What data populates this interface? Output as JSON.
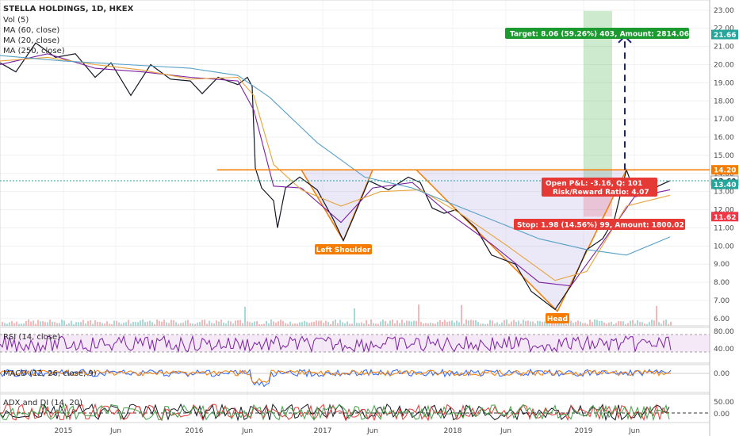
{
  "chart_data": {
    "type": "line",
    "title": "STELLA HOLDINGS, 1D, HKEX",
    "legend": [
      "Vol (5)",
      "MA (60, close)",
      "MA (20, close)",
      "MA (250, close)"
    ],
    "x_ticks": [
      "2015",
      "Jun",
      "2016",
      "Jun",
      "2017",
      "Jun",
      "2018",
      "Jun",
      "2019",
      "Jun"
    ],
    "price_ticks": [
      "23.00",
      "22.00",
      "21.00",
      "20.00",
      "19.00",
      "18.00",
      "17.00",
      "16.00",
      "15.00",
      "14.00",
      "13.00",
      "12.00",
      "11.00",
      "10.00",
      "9.00",
      "8.00",
      "7.00",
      "6.00"
    ],
    "price_range": [
      5.6,
      23.3
    ],
    "series": [
      {
        "name": "Price",
        "color": "#131722",
        "points": [
          [
            0,
            20.1
          ],
          [
            20,
            19.6
          ],
          [
            45,
            21.2
          ],
          [
            70,
            20.4
          ],
          [
            95,
            20.6
          ],
          [
            120,
            19.3
          ],
          [
            140,
            20.1
          ],
          [
            165,
            18.3
          ],
          [
            190,
            20.0
          ],
          [
            215,
            19.2
          ],
          [
            240,
            19.1
          ],
          [
            255,
            18.4
          ],
          [
            275,
            19.3
          ],
          [
            300,
            18.9
          ],
          [
            312,
            19.3
          ],
          [
            318,
            18.8
          ],
          [
            322,
            14.3
          ],
          [
            330,
            13.2
          ],
          [
            345,
            12.5
          ],
          [
            350,
            11.0
          ],
          [
            360,
            13.2
          ],
          [
            378,
            13.8
          ],
          [
            400,
            13.1
          ],
          [
            420,
            11.5
          ],
          [
            433,
            10.3
          ],
          [
            445,
            11.5
          ],
          [
            465,
            13.6
          ],
          [
            490,
            13.1
          ],
          [
            515,
            13.8
          ],
          [
            530,
            13.5
          ],
          [
            545,
            12.1
          ],
          [
            560,
            11.8
          ],
          [
            575,
            12.0
          ],
          [
            600,
            11.0
          ],
          [
            620,
            9.5
          ],
          [
            650,
            9.0
          ],
          [
            670,
            7.5
          ],
          [
            700,
            6.5
          ],
          [
            720,
            7.8
          ],
          [
            740,
            9.8
          ],
          [
            760,
            10.4
          ],
          [
            775,
            11.5
          ],
          [
            790,
            14.2
          ],
          [
            800,
            13.0
          ],
          [
            815,
            12.8
          ],
          [
            830,
            13.3
          ],
          [
            845,
            13.6
          ]
        ]
      },
      {
        "name": "MA (20)",
        "color": "#7b1fa2",
        "points": [
          [
            0,
            20.0
          ],
          [
            60,
            20.6
          ],
          [
            120,
            19.8
          ],
          [
            180,
            19.6
          ],
          [
            240,
            19.3
          ],
          [
            300,
            19.1
          ],
          [
            320,
            17.5
          ],
          [
            345,
            13.3
          ],
          [
            380,
            13.2
          ],
          [
            430,
            11.3
          ],
          [
            470,
            13.2
          ],
          [
            520,
            13.5
          ],
          [
            560,
            12.0
          ],
          [
            620,
            10.1
          ],
          [
            680,
            8.0
          ],
          [
            720,
            7.8
          ],
          [
            760,
            10.2
          ],
          [
            800,
            12.7
          ],
          [
            845,
            13.1
          ]
        ]
      },
      {
        "name": "MA (60)",
        "color": "#e8a33a",
        "points": [
          [
            0,
            20.2
          ],
          [
            60,
            20.4
          ],
          [
            120,
            20.0
          ],
          [
            180,
            19.7
          ],
          [
            240,
            19.2
          ],
          [
            300,
            19.3
          ],
          [
            320,
            18.3
          ],
          [
            345,
            14.5
          ],
          [
            380,
            13.1
          ],
          [
            430,
            12.2
          ],
          [
            480,
            13.0
          ],
          [
            530,
            13.1
          ],
          [
            580,
            11.8
          ],
          [
            640,
            10.0
          ],
          [
            700,
            8.1
          ],
          [
            740,
            8.6
          ],
          [
            790,
            12.2
          ],
          [
            845,
            12.8
          ]
        ]
      },
      {
        "name": "MA (250)",
        "color": "#56a0c8",
        "points": [
          [
            0,
            20.5
          ],
          [
            80,
            20.2
          ],
          [
            160,
            20.0
          ],
          [
            240,
            19.8
          ],
          [
            300,
            19.4
          ],
          [
            340,
            18.2
          ],
          [
            400,
            15.7
          ],
          [
            460,
            13.8
          ],
          [
            520,
            13.2
          ],
          [
            600,
            11.8
          ],
          [
            680,
            10.4
          ],
          [
            740,
            9.8
          ],
          [
            790,
            9.5
          ],
          [
            845,
            10.5
          ]
        ]
      }
    ],
    "rsi_ticks": [
      "80.00",
      "40.00"
    ],
    "macd_ticks": [
      "0.00"
    ],
    "adx_ticks": [
      "50.00",
      "0.00"
    ],
    "pane_labels": [
      "RSI (14, close)",
      "MACD (12, 26, close, 9)",
      "ADX and DI (14, 20)"
    ],
    "pattern_labels": [
      "Left Shoulder",
      "Head"
    ],
    "trade": {
      "target_text": "Target: 8.06 (59.26%) 403, Amount: 2814.06",
      "stop_text": "Stop: 1.98 (14.56%) 99, Amount: 1800.02",
      "pl_text": "Open P&L: -3.16, Q: 101",
      "rr_text": "Risk/Reward Ratio: 4.07",
      "entry": 13.6,
      "target": 21.66,
      "stop": 11.62
    },
    "price_tags": [
      {
        "text": "21.66",
        "value": 21.66,
        "color": "#26a69a"
      },
      {
        "text": "14.20",
        "value": 14.2,
        "color": "#f57c00"
      },
      {
        "text": "13.60",
        "value": 13.6,
        "color": "#ffffff"
      },
      {
        "text": "13.40",
        "value": 13.4,
        "color": "#26a69a"
      },
      {
        "text": "11.62",
        "value": 11.62,
        "color": "#f23645"
      }
    ],
    "neckline": 14.2
  }
}
